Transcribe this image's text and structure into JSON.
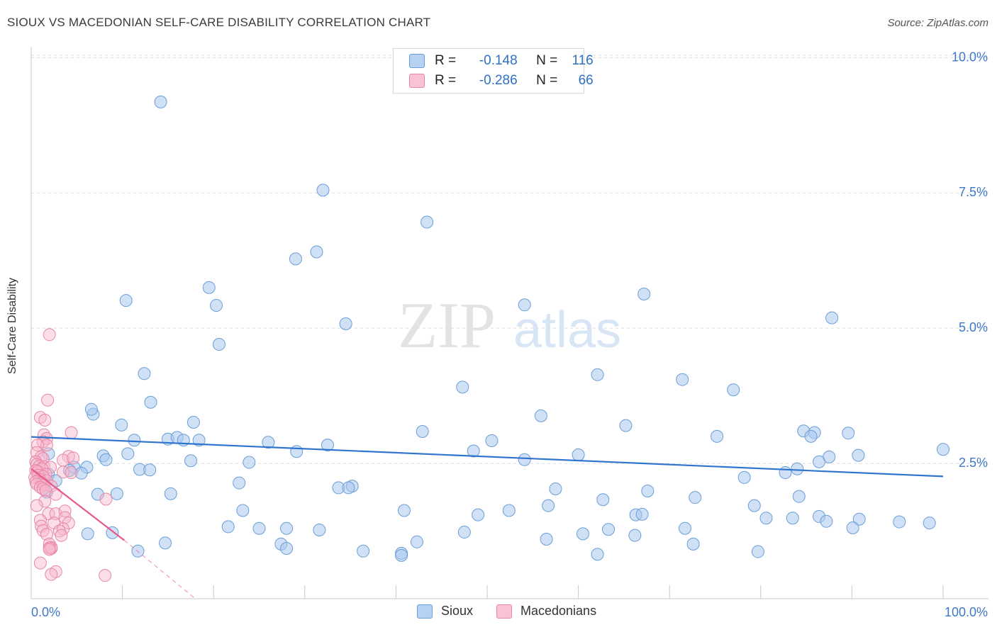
{
  "title": "SIOUX VS MACEDONIAN SELF-CARE DISABILITY CORRELATION CHART",
  "source": "Source: ZipAtlas.com",
  "watermark": {
    "zip": "ZIP",
    "atlas": "atlas"
  },
  "colors": {
    "blue_fill": "#a9c8ee",
    "blue_stroke": "#6a9ed8",
    "blue_line": "#2f74cf",
    "pink_fill": "#f7b6cb",
    "pink_stroke": "#e886a6",
    "pink_line": "#e8578a",
    "axis_text": "#3f78c8",
    "grid": "#dcdcdc"
  },
  "legend": {
    "rows": [
      {
        "r_label": "R =",
        "r_value": "-0.148",
        "n_label": "N =",
        "n_value": "116"
      },
      {
        "r_label": "R =",
        "r_value": "-0.286",
        "n_label": "N =",
        "n_value": "66"
      }
    ]
  },
  "bottom_legend": {
    "sioux": "Sioux",
    "macedonians": "Macedonians"
  },
  "chart_data": {
    "type": "scatter",
    "title": "SIOUX VS MACEDONIAN SELF-CARE DISABILITY CORRELATION CHART",
    "xlabel": "",
    "ylabel": "Self-Care Disability",
    "xlim": [
      0,
      100
    ],
    "ylim": [
      0,
      10.2
    ],
    "x_tick_labels": [
      "0.0%",
      "100.0%"
    ],
    "y_ticks": [
      2.5,
      5.0,
      7.5,
      10.0
    ],
    "y_tick_labels": [
      "2.5%",
      "5.0%",
      "7.5%",
      "10.0%"
    ],
    "series": [
      {
        "name": "Sioux",
        "r": -0.148,
        "n": 116,
        "trend": {
          "x0": 0,
          "y0": 2.99,
          "x1": 100,
          "y1": 2.26
        },
        "points": [
          [
            14.2,
            9.18
          ],
          [
            32.0,
            7.55
          ],
          [
            43.4,
            6.96
          ],
          [
            29.0,
            6.28
          ],
          [
            31.3,
            6.41
          ],
          [
            19.5,
            5.75
          ],
          [
            20.3,
            5.42
          ],
          [
            10.4,
            5.51
          ],
          [
            34.5,
            5.08
          ],
          [
            54.1,
            5.43
          ],
          [
            67.2,
            5.63
          ],
          [
            87.8,
            5.19
          ],
          [
            20.6,
            4.7
          ],
          [
            12.4,
            4.16
          ],
          [
            62.1,
            4.14
          ],
          [
            71.4,
            4.05
          ],
          [
            47.3,
            3.91
          ],
          [
            77.0,
            3.86
          ],
          [
            13.1,
            3.63
          ],
          [
            6.8,
            3.41
          ],
          [
            6.6,
            3.5
          ],
          [
            55.9,
            3.38
          ],
          [
            17.8,
            3.26
          ],
          [
            9.9,
            3.21
          ],
          [
            65.2,
            3.2
          ],
          [
            42.9,
            3.09
          ],
          [
            84.7,
            3.1
          ],
          [
            85.9,
            3.07
          ],
          [
            89.6,
            3.06
          ],
          [
            75.2,
            3.0
          ],
          [
            85.5,
            3.0
          ],
          [
            15.0,
            2.95
          ],
          [
            16.0,
            2.98
          ],
          [
            16.7,
            2.93
          ],
          [
            11.3,
            2.93
          ],
          [
            18.4,
            2.93
          ],
          [
            26.0,
            2.89
          ],
          [
            32.5,
            2.84
          ],
          [
            50.5,
            2.92
          ],
          [
            1.9,
            2.68
          ],
          [
            7.9,
            2.64
          ],
          [
            10.6,
            2.68
          ],
          [
            29.1,
            2.72
          ],
          [
            48.5,
            2.73
          ],
          [
            60.0,
            2.66
          ],
          [
            90.7,
            2.65
          ],
          [
            100.0,
            2.76
          ],
          [
            8.2,
            2.57
          ],
          [
            17.5,
            2.55
          ],
          [
            23.9,
            2.52
          ],
          [
            54.1,
            2.57
          ],
          [
            87.5,
            2.62
          ],
          [
            86.4,
            2.53
          ],
          [
            4.7,
            2.43
          ],
          [
            6.1,
            2.43
          ],
          [
            11.9,
            2.39
          ],
          [
            13.0,
            2.38
          ],
          [
            4.2,
            2.37
          ],
          [
            5.5,
            2.32
          ],
          [
            1.9,
            2.3
          ],
          [
            82.7,
            2.33
          ],
          [
            84.0,
            2.4
          ],
          [
            78.2,
            2.24
          ],
          [
            2.7,
            2.18
          ],
          [
            22.8,
            2.14
          ],
          [
            33.7,
            2.05
          ],
          [
            35.2,
            2.08
          ],
          [
            34.8,
            2.05
          ],
          [
            57.5,
            2.03
          ],
          [
            1.7,
            1.97
          ],
          [
            7.3,
            1.93
          ],
          [
            9.4,
            1.94
          ],
          [
            15.3,
            1.94
          ],
          [
            67.6,
            1.99
          ],
          [
            72.8,
            1.87
          ],
          [
            84.2,
            1.89
          ],
          [
            62.7,
            1.83
          ],
          [
            56.7,
            1.72
          ],
          [
            79.3,
            1.72
          ],
          [
            23.2,
            1.63
          ],
          [
            40.9,
            1.63
          ],
          [
            49.0,
            1.55
          ],
          [
            52.4,
            1.63
          ],
          [
            66.3,
            1.55
          ],
          [
            67.0,
            1.56
          ],
          [
            86.4,
            1.52
          ],
          [
            90.8,
            1.47
          ],
          [
            80.6,
            1.49
          ],
          [
            83.5,
            1.49
          ],
          [
            87.2,
            1.43
          ],
          [
            95.2,
            1.42
          ],
          [
            98.5,
            1.4
          ],
          [
            90.1,
            1.31
          ],
          [
            25.0,
            1.3
          ],
          [
            28.0,
            1.3
          ],
          [
            31.6,
            1.27
          ],
          [
            47.5,
            1.23
          ],
          [
            63.3,
            1.28
          ],
          [
            66.2,
            1.17
          ],
          [
            56.5,
            1.1
          ],
          [
            71.7,
            1.3
          ],
          [
            27.4,
            1.01
          ],
          [
            14.7,
            1.03
          ],
          [
            42.3,
            1.05
          ],
          [
            36.4,
            0.88
          ],
          [
            40.6,
            0.84
          ],
          [
            11.7,
            0.88
          ],
          [
            79.7,
            0.87
          ],
          [
            28.0,
            0.93
          ],
          [
            62.1,
            0.82
          ],
          [
            40.6,
            0.8
          ],
          [
            8.9,
            1.22
          ],
          [
            6.2,
            1.2
          ],
          [
            21.6,
            1.33
          ],
          [
            60.5,
            1.2
          ],
          [
            72.6,
            1.01
          ]
        ]
      },
      {
        "name": "Macedonians",
        "r": -0.286,
        "n": 66,
        "trend": {
          "x0": 0,
          "y0": 2.4,
          "x1": 10.2,
          "y1": 1.08
        },
        "trend_ext": {
          "x0": 10.2,
          "y0": 1.08,
          "x1": 18.0,
          "y1": 0.0
        },
        "points": [
          [
            2.0,
            4.88
          ],
          [
            1.8,
            3.67
          ],
          [
            1.0,
            3.35
          ],
          [
            1.5,
            3.3
          ],
          [
            4.4,
            3.07
          ],
          [
            1.4,
            3.03
          ],
          [
            1.7,
            2.96
          ],
          [
            1.3,
            2.9
          ],
          [
            1.7,
            2.84
          ],
          [
            0.7,
            2.84
          ],
          [
            0.6,
            2.7
          ],
          [
            1.1,
            2.62
          ],
          [
            1.3,
            2.59
          ],
          [
            0.5,
            2.53
          ],
          [
            0.6,
            2.48
          ],
          [
            0.9,
            2.45
          ],
          [
            1.4,
            2.44
          ],
          [
            2.1,
            2.43
          ],
          [
            1.2,
            2.4
          ],
          [
            0.5,
            2.37
          ],
          [
            0.7,
            2.35
          ],
          [
            3.5,
            2.34
          ],
          [
            4.4,
            2.33
          ],
          [
            1.6,
            2.3
          ],
          [
            0.8,
            2.28
          ],
          [
            1.3,
            2.26
          ],
          [
            0.4,
            2.24
          ],
          [
            0.9,
            2.21
          ],
          [
            1.7,
            2.18
          ],
          [
            0.5,
            2.16
          ],
          [
            1.2,
            2.14
          ],
          [
            0.6,
            2.12
          ],
          [
            1.4,
            2.1
          ],
          [
            2.2,
            2.08
          ],
          [
            1.0,
            2.06
          ],
          [
            1.3,
            2.03
          ],
          [
            1.6,
            2.0
          ],
          [
            2.7,
            1.93
          ],
          [
            1.5,
            1.8
          ],
          [
            0.6,
            1.72
          ],
          [
            8.2,
            1.84
          ],
          [
            1.9,
            1.57
          ],
          [
            2.7,
            1.57
          ],
          [
            3.7,
            1.62
          ],
          [
            3.7,
            1.5
          ],
          [
            1.0,
            1.45
          ],
          [
            2.5,
            1.4
          ],
          [
            4.1,
            1.4
          ],
          [
            1.1,
            1.34
          ],
          [
            3.5,
            1.29
          ],
          [
            1.3,
            1.26
          ],
          [
            3.1,
            1.25
          ],
          [
            1.7,
            1.19
          ],
          [
            3.3,
            1.17
          ],
          [
            2.0,
            1.01
          ],
          [
            2.2,
            0.93
          ],
          [
            2.2,
            0.95
          ],
          [
            2.0,
            0.94
          ],
          [
            2.0,
            0.91
          ],
          [
            1.0,
            0.66
          ],
          [
            2.7,
            0.5
          ],
          [
            2.2,
            0.45
          ],
          [
            8.1,
            0.43
          ],
          [
            4.1,
            2.63
          ],
          [
            3.5,
            2.56
          ],
          [
            4.6,
            2.6
          ]
        ]
      }
    ]
  }
}
